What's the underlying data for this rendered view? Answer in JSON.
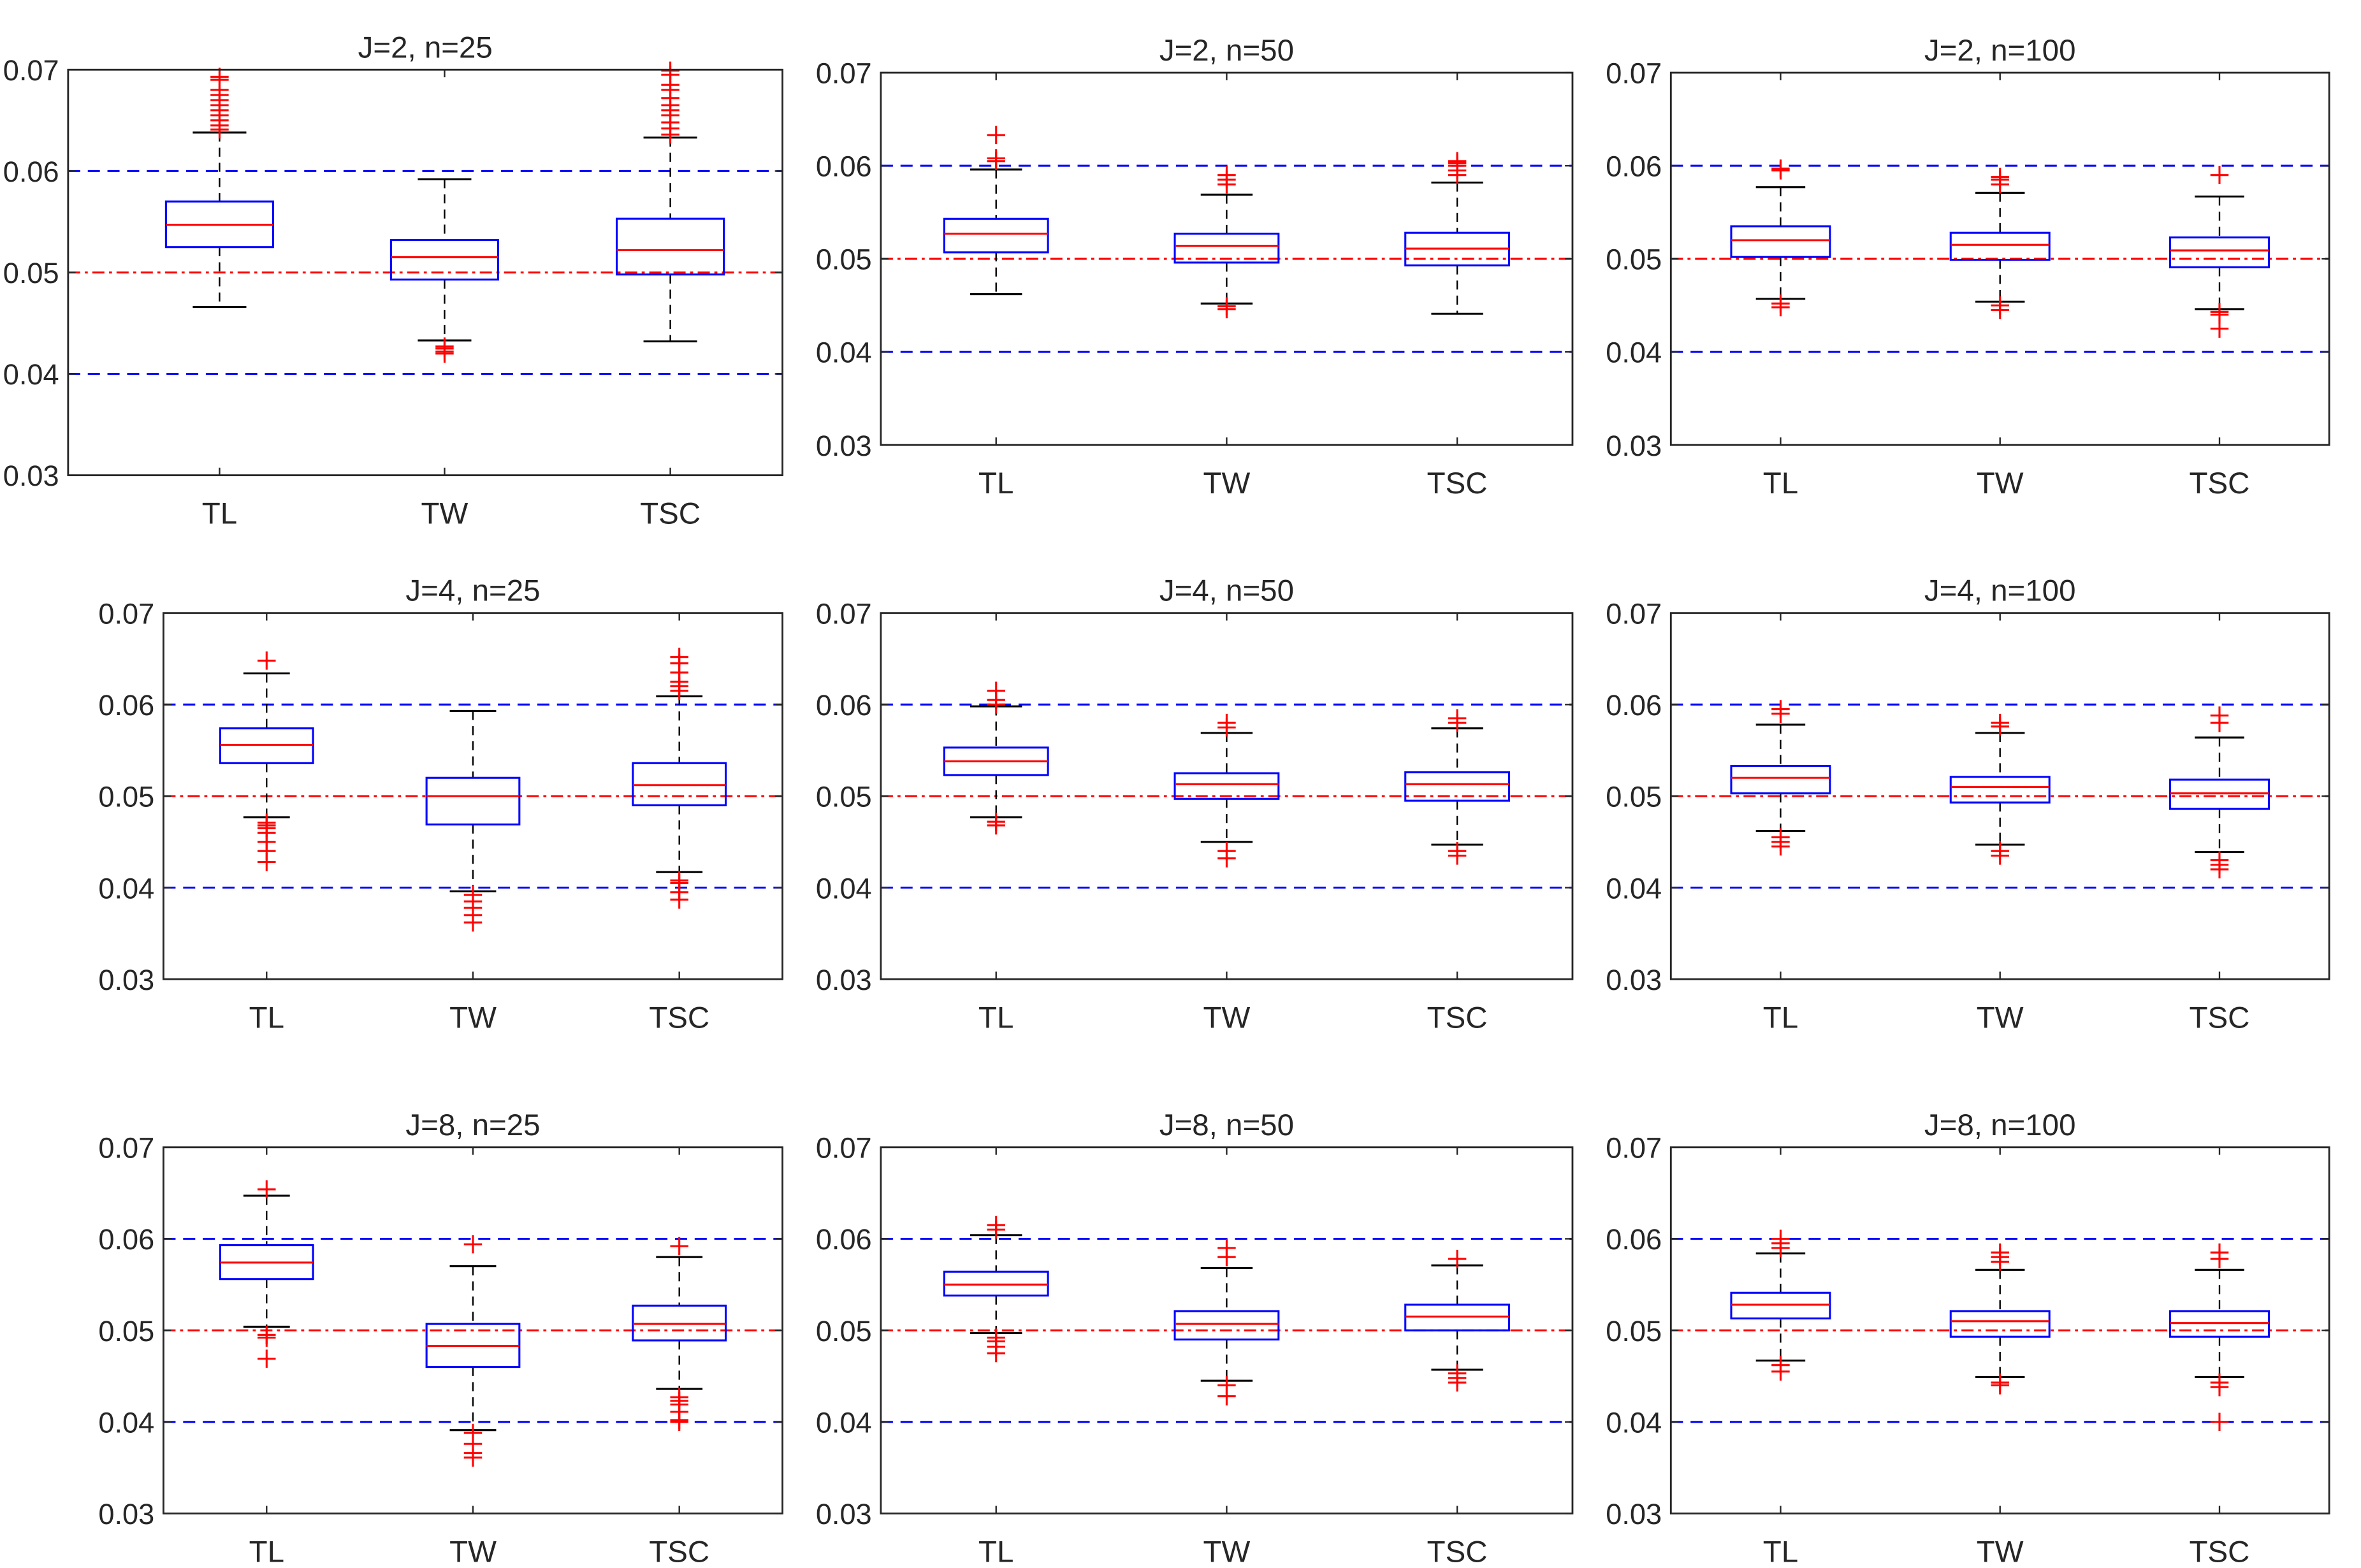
{
  "chart_data": {
    "type": "boxplot",
    "ylim": [
      0.03,
      0.07
    ],
    "yticks": [
      "0.03",
      "0.04",
      "0.05",
      "0.06",
      "0.07"
    ],
    "categories": [
      "TL",
      "TW",
      "TSC"
    ],
    "reference_lines": [
      {
        "value": 0.04,
        "style": "dashed",
        "color": "#0000ff"
      },
      {
        "value": 0.06,
        "style": "dashed",
        "color": "#0000ff"
      },
      {
        "value": 0.05,
        "style": "dash-dot",
        "color": "#ff0000"
      }
    ],
    "colors": {
      "box": "#0000ff",
      "median": "#ff0000",
      "whisker": "#000000",
      "outlier": "#ff0000"
    },
    "panels": [
      {
        "title": "J=2, n=25",
        "boxes": [
          {
            "q1": 0.0525,
            "median": 0.0547,
            "q3": 0.057,
            "whisker_low": 0.0466,
            "whisker_high": 0.0638,
            "outliers": [
              0.0641,
              0.0645,
              0.065,
              0.0655,
              0.066,
              0.0665,
              0.067,
              0.0675,
              0.068,
              0.069,
              0.0693
            ]
          },
          {
            "q1": 0.0493,
            "median": 0.0515,
            "q3": 0.0532,
            "whisker_low": 0.0433,
            "whisker_high": 0.0592,
            "outliers": [
              0.042,
              0.0422,
              0.0425,
              0.0427
            ]
          },
          {
            "q1": 0.0498,
            "median": 0.0522,
            "q3": 0.0553,
            "whisker_low": 0.0432,
            "whisker_high": 0.0633,
            "outliers": [
              0.0636,
              0.0642,
              0.0648,
              0.0655,
              0.066,
              0.0665,
              0.0672,
              0.068,
              0.0685,
              0.0695,
              0.0699
            ]
          }
        ]
      },
      {
        "title": "J=2, n=50",
        "boxes": [
          {
            "q1": 0.0507,
            "median": 0.0527,
            "q3": 0.0543,
            "whisker_low": 0.0462,
            "whisker_high": 0.0596,
            "outliers": [
              0.0605,
              0.0608,
              0.0633
            ]
          },
          {
            "q1": 0.0496,
            "median": 0.0514,
            "q3": 0.0527,
            "whisker_low": 0.0452,
            "whisker_high": 0.0569,
            "outliers": [
              0.0446,
              0.0449,
              0.058,
              0.0585,
              0.059
            ]
          },
          {
            "q1": 0.0493,
            "median": 0.0511,
            "q3": 0.0528,
            "whisker_low": 0.0441,
            "whisker_high": 0.0582,
            "outliers": [
              0.059,
              0.0595,
              0.06,
              0.0603,
              0.0605
            ]
          }
        ]
      },
      {
        "title": "J=2, n=100",
        "boxes": [
          {
            "q1": 0.0502,
            "median": 0.052,
            "q3": 0.0535,
            "whisker_low": 0.0457,
            "whisker_high": 0.0577,
            "outliers": [
              0.0595,
              0.0597,
              0.0452,
              0.0448
            ]
          },
          {
            "q1": 0.0499,
            "median": 0.0515,
            "q3": 0.0528,
            "whisker_low": 0.0454,
            "whisker_high": 0.0571,
            "outliers": [
              0.058,
              0.0585,
              0.0588,
              0.045,
              0.0445
            ]
          },
          {
            "q1": 0.0491,
            "median": 0.0509,
            "q3": 0.0523,
            "whisker_low": 0.0446,
            "whisker_high": 0.0567,
            "outliers": [
              0.059,
              0.0443,
              0.044,
              0.0425
            ]
          }
        ]
      },
      {
        "title": "J=4, n=25",
        "boxes": [
          {
            "q1": 0.0536,
            "median": 0.0556,
            "q3": 0.0574,
            "whisker_low": 0.0477,
            "whisker_high": 0.0634,
            "outliers": [
              0.0648,
              0.0471,
              0.0468,
              0.0465,
              0.046,
              0.045,
              0.044,
              0.0428
            ]
          },
          {
            "q1": 0.0469,
            "median": 0.05,
            "q3": 0.052,
            "whisker_low": 0.0396,
            "whisker_high": 0.0593,
            "outliers": [
              0.0392,
              0.0385,
              0.0378,
              0.037,
              0.0362
            ]
          },
          {
            "q1": 0.049,
            "median": 0.0512,
            "q3": 0.0536,
            "whisker_low": 0.0417,
            "whisker_high": 0.0609,
            "outliers": [
              0.0652,
              0.0645,
              0.0635,
              0.0625,
              0.062,
              0.0615,
              0.0408,
              0.0405,
              0.0395,
              0.0387
            ]
          }
        ]
      },
      {
        "title": "J=4, n=50",
        "boxes": [
          {
            "q1": 0.0523,
            "median": 0.0538,
            "q3": 0.0553,
            "whisker_low": 0.0477,
            "whisker_high": 0.0598,
            "outliers": [
              0.06,
              0.0605,
              0.0615,
              0.0472,
              0.0468
            ]
          },
          {
            "q1": 0.0497,
            "median": 0.0513,
            "q3": 0.0525,
            "whisker_low": 0.045,
            "whisker_high": 0.0569,
            "outliers": [
              0.0575,
              0.058,
              0.044,
              0.0432
            ]
          },
          {
            "q1": 0.0495,
            "median": 0.0513,
            "q3": 0.0526,
            "whisker_low": 0.0447,
            "whisker_high": 0.0574,
            "outliers": [
              0.058,
              0.0585,
              0.044,
              0.0435
            ]
          }
        ]
      },
      {
        "title": "J=4, n=100",
        "boxes": [
          {
            "q1": 0.0503,
            "median": 0.052,
            "q3": 0.0533,
            "whisker_low": 0.0462,
            "whisker_high": 0.0578,
            "outliers": [
              0.059,
              0.0595,
              0.0455,
              0.045,
              0.0445
            ]
          },
          {
            "q1": 0.0493,
            "median": 0.051,
            "q3": 0.0521,
            "whisker_low": 0.0447,
            "whisker_high": 0.0569,
            "outliers": [
              0.0576,
              0.058,
              0.044,
              0.0435
            ]
          },
          {
            "q1": 0.0486,
            "median": 0.0503,
            "q3": 0.0518,
            "whisker_low": 0.0439,
            "whisker_high": 0.0564,
            "outliers": [
              0.058,
              0.0588,
              0.043,
              0.0425,
              0.042
            ]
          }
        ]
      },
      {
        "title": "J=8, n=25",
        "boxes": [
          {
            "q1": 0.0556,
            "median": 0.0574,
            "q3": 0.0593,
            "whisker_low": 0.0504,
            "whisker_high": 0.0647,
            "outliers": [
              0.0654,
              0.0495,
              0.0492,
              0.0469
            ]
          },
          {
            "q1": 0.046,
            "median": 0.0483,
            "q3": 0.0507,
            "whisker_low": 0.0391,
            "whisker_high": 0.057,
            "outliers": [
              0.0594,
              0.0388,
              0.0376,
              0.0366,
              0.0361
            ]
          },
          {
            "q1": 0.0489,
            "median": 0.0507,
            "q3": 0.0527,
            "whisker_low": 0.0436,
            "whisker_high": 0.058,
            "outliers": [
              0.0592,
              0.0427,
              0.0423,
              0.0419,
              0.0411,
              0.0402,
              0.04
            ]
          }
        ]
      },
      {
        "title": "J=8, n=50",
        "boxes": [
          {
            "q1": 0.0538,
            "median": 0.055,
            "q3": 0.0564,
            "whisker_low": 0.0497,
            "whisker_high": 0.0604,
            "outliers": [
              0.061,
              0.0615,
              0.0492,
              0.0488,
              0.0482,
              0.0475
            ]
          },
          {
            "q1": 0.049,
            "median": 0.0507,
            "q3": 0.0521,
            "whisker_low": 0.0445,
            "whisker_high": 0.0568,
            "outliers": [
              0.058,
              0.059,
              0.044,
              0.0428
            ]
          },
          {
            "q1": 0.05,
            "median": 0.0515,
            "q3": 0.0528,
            "whisker_low": 0.0457,
            "whisker_high": 0.0571,
            "outliers": [
              0.0578,
              0.0453,
              0.0448,
              0.0443
            ]
          }
        ]
      },
      {
        "title": "J=8, n=100",
        "boxes": [
          {
            "q1": 0.0513,
            "median": 0.0528,
            "q3": 0.0541,
            "whisker_low": 0.0467,
            "whisker_high": 0.0584,
            "outliers": [
              0.059,
              0.0595,
              0.06,
              0.0462,
              0.0455
            ]
          },
          {
            "q1": 0.0493,
            "median": 0.051,
            "q3": 0.0521,
            "whisker_low": 0.0449,
            "whisker_high": 0.0566,
            "outliers": [
              0.0575,
              0.058,
              0.0585,
              0.0443,
              0.044
            ]
          },
          {
            "q1": 0.0493,
            "median": 0.0508,
            "q3": 0.0521,
            "whisker_low": 0.0449,
            "whisker_high": 0.0566,
            "outliers": [
              0.0578,
              0.0585,
              0.0443,
              0.0438,
              0.04
            ]
          }
        ]
      }
    ]
  }
}
